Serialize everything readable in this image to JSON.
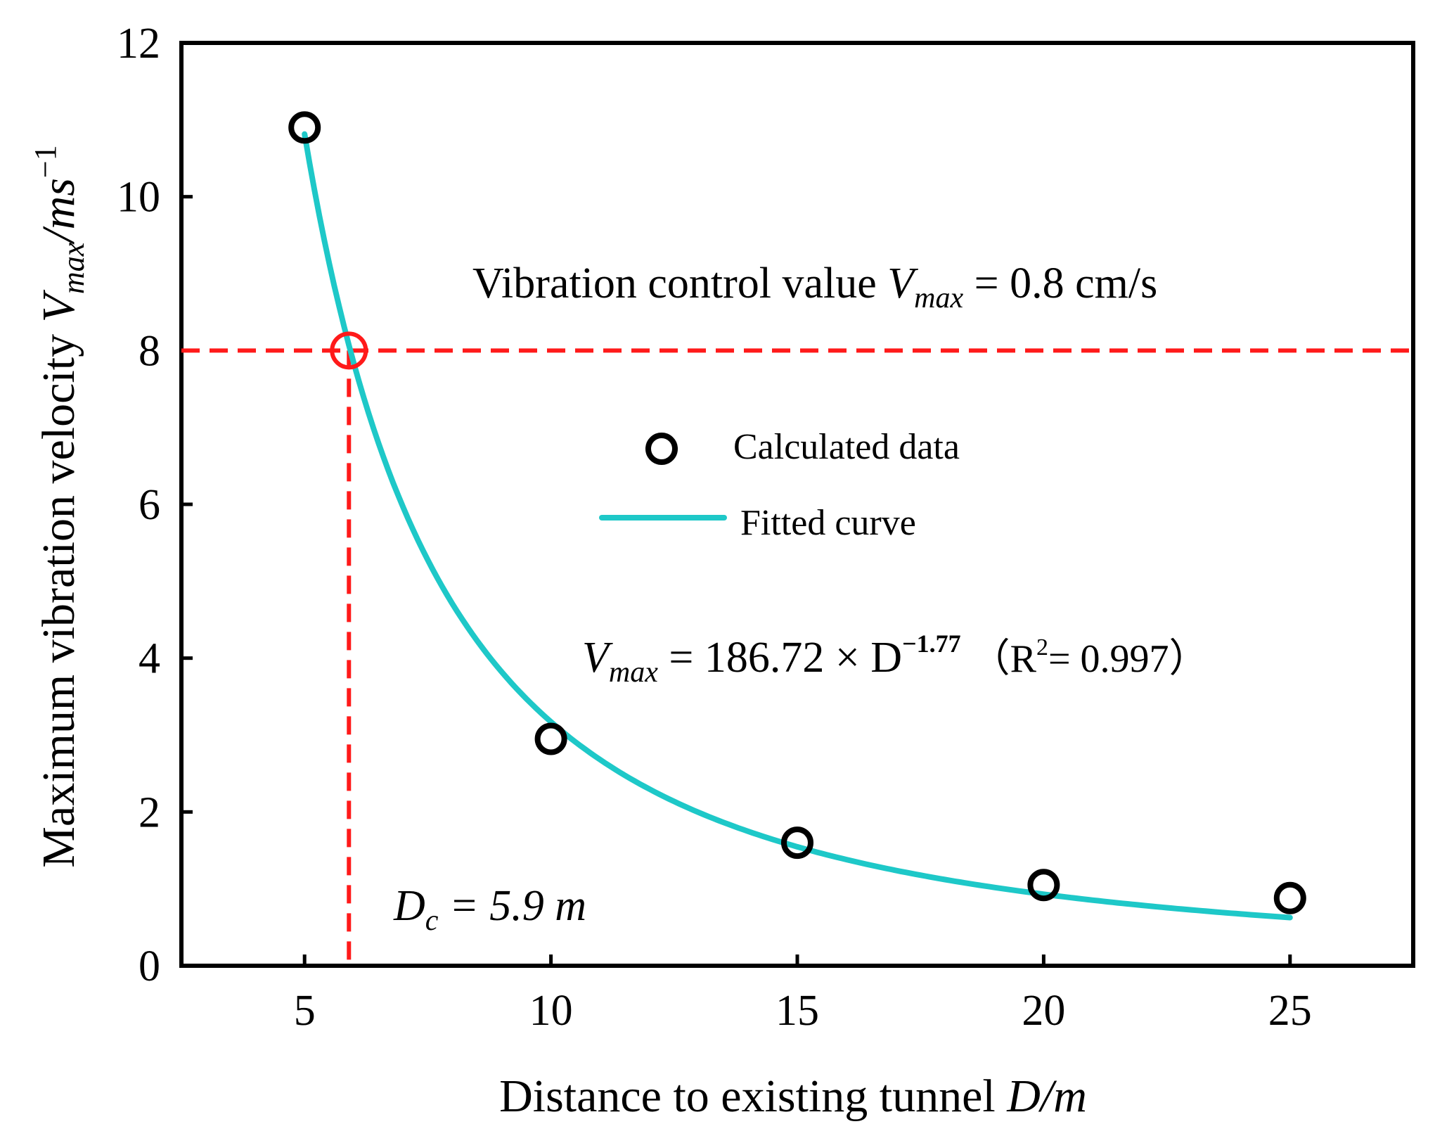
{
  "chart_data": {
    "type": "scatter",
    "title": "",
    "xlabel": "Distance to existing tunnel",
    "xlabel_symbol": "D/m",
    "ylabel": "Maximum vibration velocity",
    "ylabel_symbol_main": "V",
    "ylabel_symbol_sub": "max",
    "ylabel_unit": "/ms",
    "ylabel_unit_sup": "−1",
    "xlim": [
      2.5,
      27.5
    ],
    "ylim": [
      0,
      12
    ],
    "x_ticks": [
      5,
      10,
      15,
      20,
      25
    ],
    "y_ticks": [
      0,
      2,
      4,
      6,
      8,
      10,
      12
    ],
    "series": [
      {
        "name": "Calculated data",
        "kind": "points",
        "marker": "open-circle",
        "color": "#000000",
        "x": [
          5,
          10,
          15,
          20,
          25
        ],
        "y": [
          10.9,
          2.95,
          1.6,
          1.05,
          0.88
        ]
      },
      {
        "name": "Fitted curve",
        "kind": "line",
        "color": "#1ec8c8",
        "equation": {
          "coef": 186.72,
          "exponent": -1.77
        },
        "x_range": [
          5,
          25
        ]
      }
    ],
    "threshold": {
      "y": 8,
      "color": "#ff1a1a",
      "label_prefix": "Vibration control value ",
      "label_var": "V",
      "label_sub": "max",
      "label_rest": " = 0.8 cm/s"
    },
    "critical_point": {
      "x": 5.9,
      "y": 8,
      "label_var": "D",
      "label_sub": "c",
      "label_rest": " = 5.9 m"
    },
    "equation_label": {
      "lhs_var": "V",
      "lhs_sub": "max",
      "middle": " = 186.72 × D",
      "exp": "−1.77",
      "r2_prefix": " （R",
      "r2_sup": "2",
      "r2_rest": "= 0.997）"
    },
    "legend": {
      "position": "center",
      "entries": [
        "Calculated data",
        "Fitted curve"
      ]
    },
    "grid": false
  }
}
